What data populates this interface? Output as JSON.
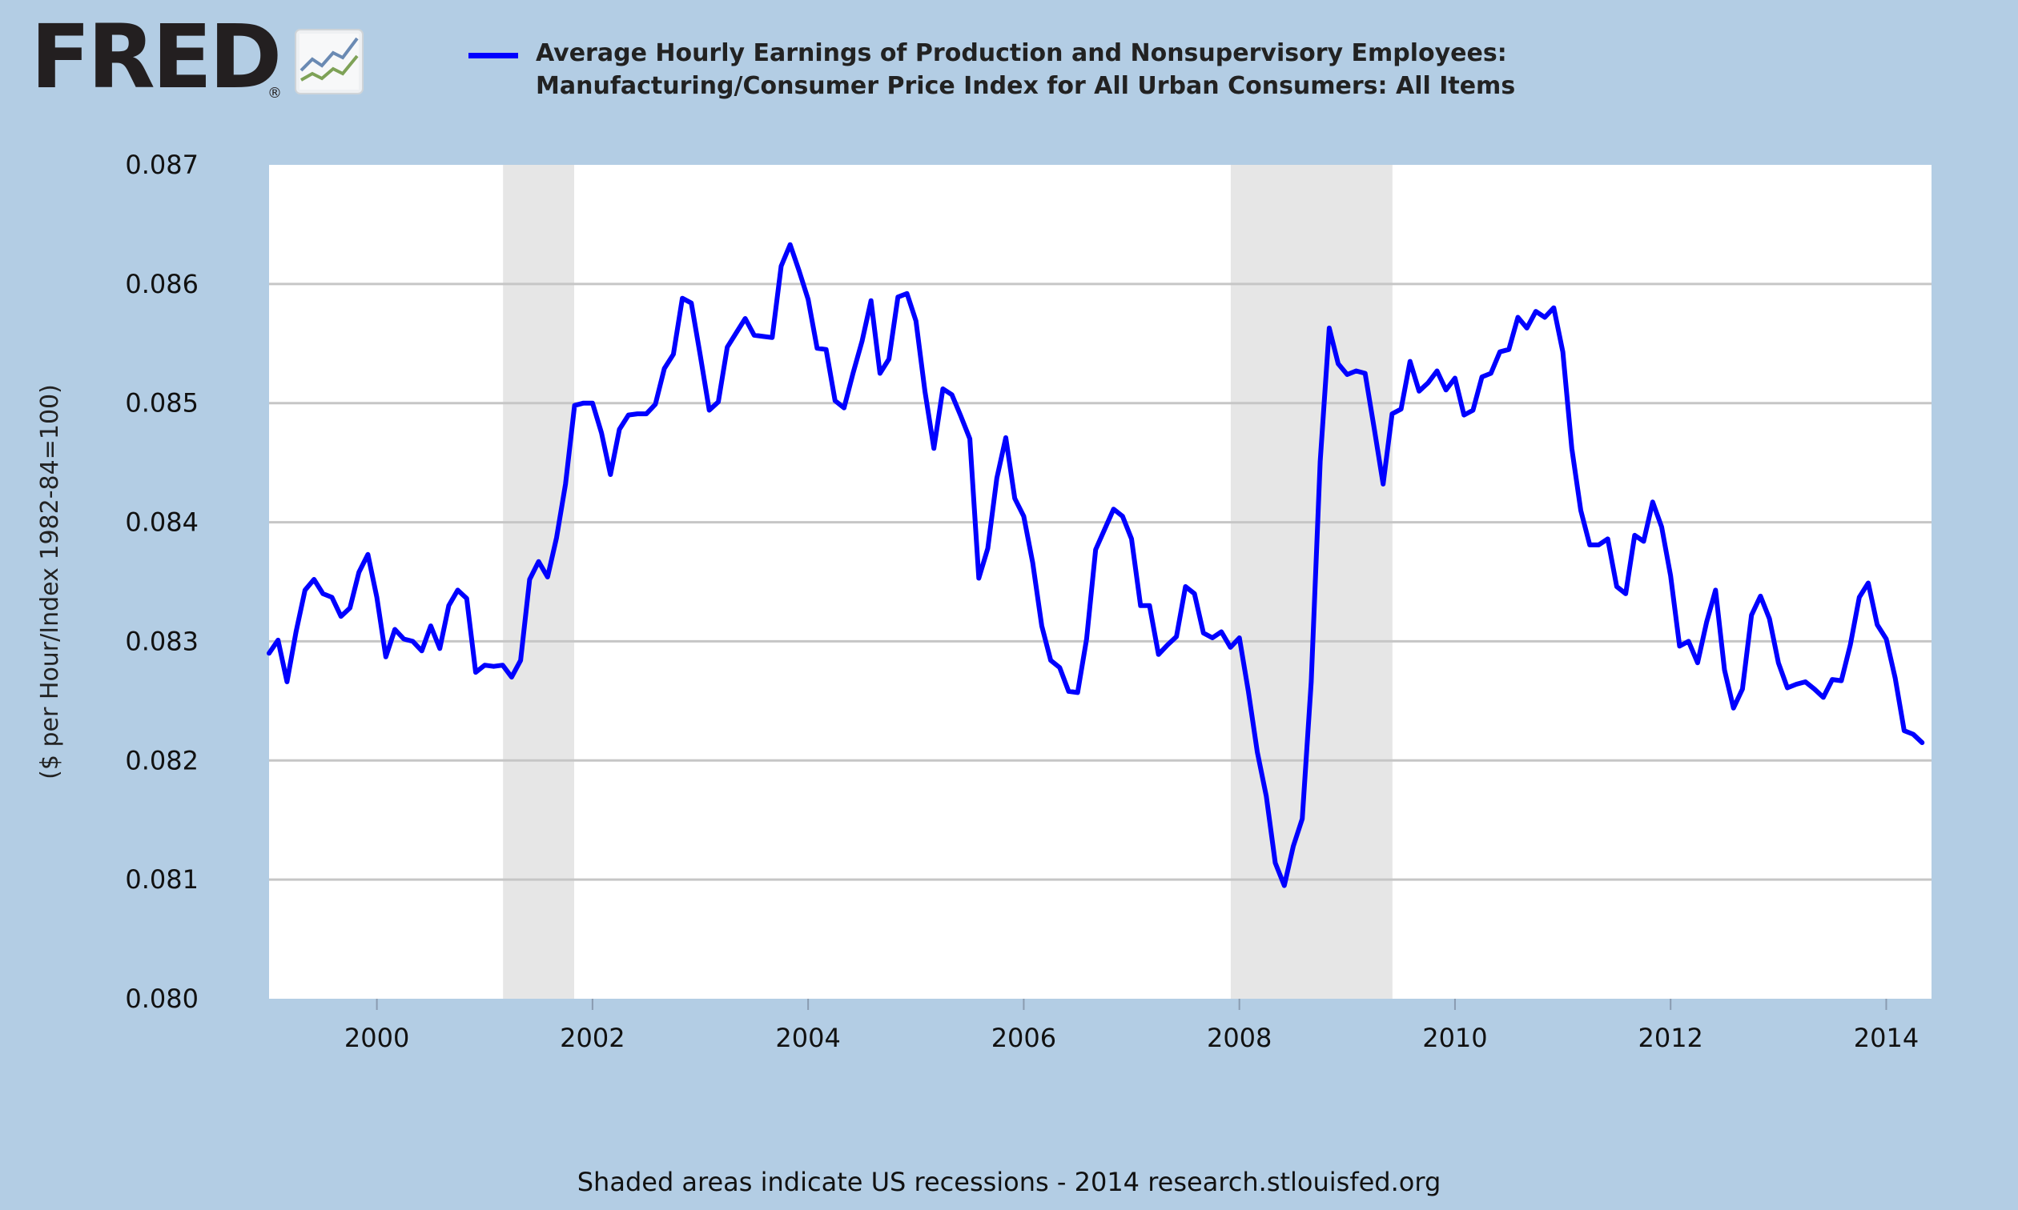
{
  "logo": {
    "text": "FRED",
    "mark": "®",
    "icon": "chart-lines-icon"
  },
  "colors": {
    "background": "#b3cde4",
    "plot_background": "#ffffff",
    "series": "#0000ff",
    "recession": "#e6e6e6",
    "grid": "#c6c6c6"
  },
  "footer": "Shaded areas indicate US recessions - 2014 research.stlouisfed.org",
  "chart_data": {
    "type": "line",
    "title": "",
    "ylabel": "($ per Hour/Index 1982-84=100)",
    "xlabel": "",
    "ylim": [
      0.08,
      0.087
    ],
    "xlim": [
      1999.0,
      2014.42
    ],
    "yticks": [
      "0.087",
      "0.086",
      "0.085",
      "0.084",
      "0.083",
      "0.082",
      "0.081",
      "0.080"
    ],
    "xticks": [
      "2000",
      "2002",
      "2004",
      "2006",
      "2008",
      "2010",
      "2012",
      "2014"
    ],
    "grid": "horizontal",
    "legend_position": "top",
    "recessions": [
      [
        2001.17,
        2001.83
      ],
      [
        2007.92,
        2009.42
      ]
    ],
    "series": [
      {
        "name": "Average Hourly Earnings of Production and Nonsupervisory Employees: Manufacturing/Consumer Price Index for All Urban Consumers: All Items",
        "start": "1999-01",
        "frequency": "monthly",
        "values": [
          0.0829,
          0.08301,
          0.08266,
          0.08308,
          0.08343,
          0.08352,
          0.0834,
          0.08337,
          0.08321,
          0.08328,
          0.08358,
          0.08373,
          0.08337,
          0.08287,
          0.0831,
          0.08302,
          0.083,
          0.08292,
          0.08313,
          0.08294,
          0.0833,
          0.08343,
          0.08336,
          0.08274,
          0.0828,
          0.08279,
          0.0828,
          0.0827,
          0.08284,
          0.08352,
          0.08367,
          0.08354,
          0.08387,
          0.08432,
          0.08498,
          0.085,
          0.085,
          0.08475,
          0.0844,
          0.08478,
          0.0849,
          0.08491,
          0.08491,
          0.08499,
          0.08529,
          0.08541,
          0.08588,
          0.08584,
          0.0854,
          0.08494,
          0.08501,
          0.08547,
          0.08559,
          0.08571,
          0.08557,
          0.08556,
          0.08555,
          0.08615,
          0.08633,
          0.08611,
          0.08587,
          0.08546,
          0.08545,
          0.08502,
          0.08496,
          0.08525,
          0.08552,
          0.08586,
          0.08525,
          0.08537,
          0.08589,
          0.08592,
          0.08569,
          0.0851,
          0.08462,
          0.08512,
          0.08507,
          0.08489,
          0.0847,
          0.08353,
          0.08378,
          0.08437,
          0.08471,
          0.0842,
          0.08405,
          0.08366,
          0.08313,
          0.08284,
          0.08278,
          0.08258,
          0.08257,
          0.08302,
          0.08377,
          0.08394,
          0.08411,
          0.08405,
          0.08386,
          0.0833,
          0.0833,
          0.08289,
          0.08297,
          0.08304,
          0.08346,
          0.0834,
          0.08307,
          0.08303,
          0.08308,
          0.08295,
          0.08303,
          0.08258,
          0.08207,
          0.0817,
          0.08114,
          0.08095,
          0.08128,
          0.08151,
          0.08266,
          0.08451,
          0.08563,
          0.08533,
          0.08524,
          0.08527,
          0.08525,
          0.08479,
          0.08432,
          0.08491,
          0.08495,
          0.08535,
          0.0851,
          0.08517,
          0.08527,
          0.08511,
          0.08521,
          0.0849,
          0.08494,
          0.08522,
          0.08525,
          0.08543,
          0.08545,
          0.08572,
          0.08563,
          0.08577,
          0.08572,
          0.0858,
          0.08543,
          0.08462,
          0.0841,
          0.08381,
          0.08381,
          0.08386,
          0.08346,
          0.0834,
          0.08389,
          0.08384,
          0.08417,
          0.08396,
          0.08355,
          0.08296,
          0.083,
          0.08282,
          0.08316,
          0.08343,
          0.08276,
          0.08244,
          0.0826,
          0.08322,
          0.08338,
          0.08319,
          0.08282,
          0.08261,
          0.08264,
          0.08266,
          0.0826,
          0.08253,
          0.08268,
          0.08267,
          0.08297,
          0.08337,
          0.08349,
          0.08314,
          0.08302,
          0.08269,
          0.08225,
          0.08222,
          0.08215
        ]
      }
    ]
  }
}
